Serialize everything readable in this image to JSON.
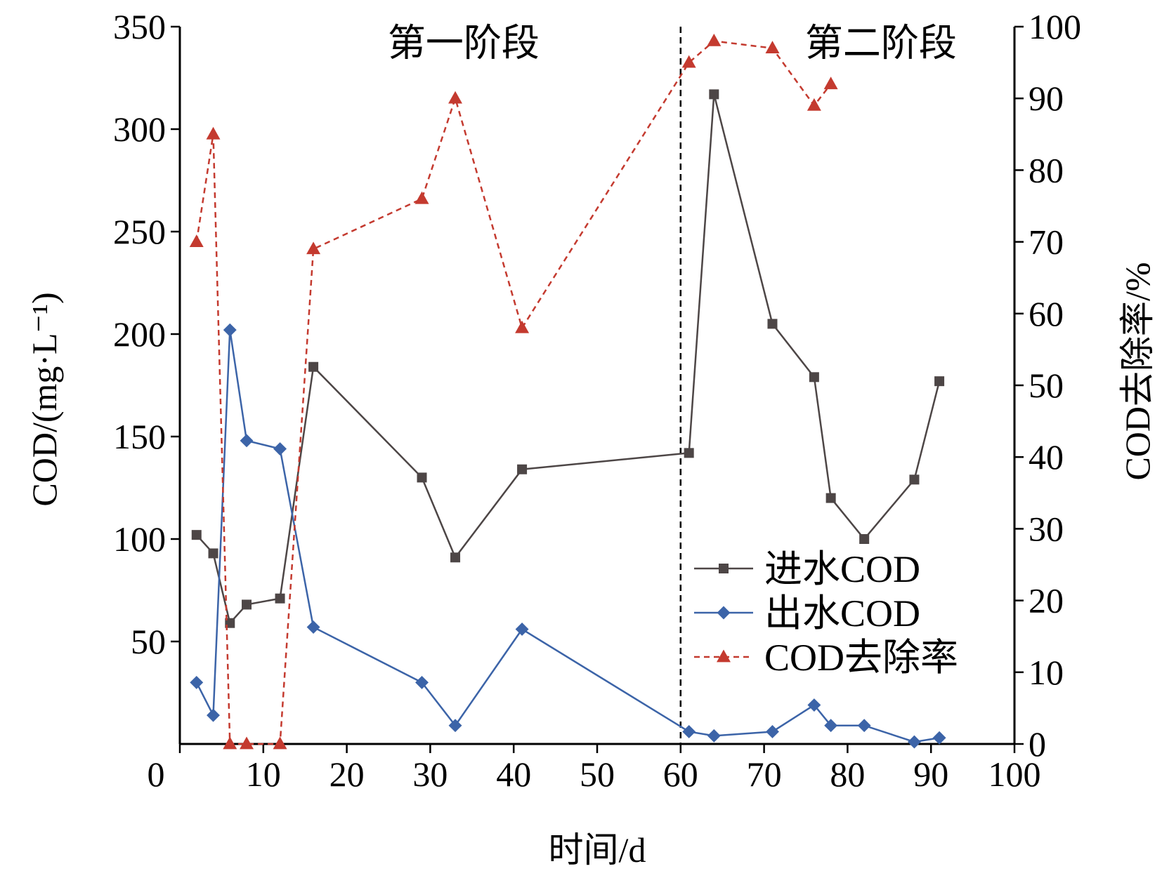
{
  "chart_data": {
    "type": "line",
    "title": "",
    "xlabel": "时间/d",
    "ylabel": "COD/(mg·L⁻¹)",
    "ylabel_right": "COD去除率/%",
    "xlim": [
      0,
      100
    ],
    "ylim": [
      0,
      350
    ],
    "ylim_right": [
      0,
      100
    ],
    "x_ticks": [
      0,
      10,
      20,
      30,
      40,
      50,
      60,
      70,
      80,
      90,
      100
    ],
    "y_ticks": [
      50,
      100,
      150,
      200,
      250,
      300,
      350
    ],
    "y_ticks_right": [
      0,
      10,
      20,
      30,
      40,
      50,
      60,
      70,
      80,
      90,
      100
    ],
    "grid": false,
    "legend_position": "bottom-right",
    "stage_divider_x": 60,
    "annotations": [
      {
        "text": "第一阶段",
        "x": 34,
        "y": 342
      },
      {
        "text": "第二阶段",
        "x": 84,
        "y": 342
      }
    ],
    "series": [
      {
        "name": "进水COD",
        "axis": "left",
        "color": "#4d4646",
        "marker": "square",
        "line": "solid",
        "points": [
          [
            2,
            102
          ],
          [
            4,
            93
          ],
          [
            6,
            59
          ],
          [
            8,
            68
          ],
          [
            12,
            71
          ],
          [
            16,
            184
          ],
          [
            29,
            130
          ],
          [
            33,
            91
          ],
          [
            41,
            134
          ],
          [
            61,
            142
          ],
          [
            64,
            317
          ],
          [
            71,
            205
          ],
          [
            76,
            179
          ],
          [
            78,
            120
          ],
          [
            82,
            100
          ],
          [
            88,
            129
          ],
          [
            91,
            177
          ]
        ]
      },
      {
        "name": "出水COD",
        "axis": "left",
        "color": "#3c64a8",
        "marker": "diamond",
        "line": "solid",
        "points": [
          [
            2,
            30
          ],
          [
            4,
            14
          ],
          [
            6,
            202
          ],
          [
            8,
            148
          ],
          [
            12,
            144
          ],
          [
            16,
            57
          ],
          [
            29,
            30
          ],
          [
            33,
            9
          ],
          [
            41,
            56
          ],
          [
            61,
            6
          ],
          [
            64,
            4
          ],
          [
            71,
            6
          ],
          [
            76,
            19
          ],
          [
            78,
            9
          ],
          [
            82,
            9
          ],
          [
            88,
            1
          ],
          [
            91,
            3
          ]
        ]
      },
      {
        "name": "COD去除率",
        "axis": "right",
        "color": "#c43a2f",
        "marker": "triangle",
        "line": "dashed",
        "points": [
          [
            2,
            70
          ],
          [
            4,
            85
          ],
          [
            6,
            0
          ],
          [
            8,
            0
          ],
          [
            12,
            0
          ],
          [
            16,
            69
          ],
          [
            29,
            76
          ],
          [
            33,
            90
          ],
          [
            41,
            58
          ],
          [
            61,
            95
          ],
          [
            64,
            98
          ],
          [
            71,
            97
          ],
          [
            76,
            89
          ],
          [
            78,
            92
          ]
        ]
      }
    ]
  }
}
